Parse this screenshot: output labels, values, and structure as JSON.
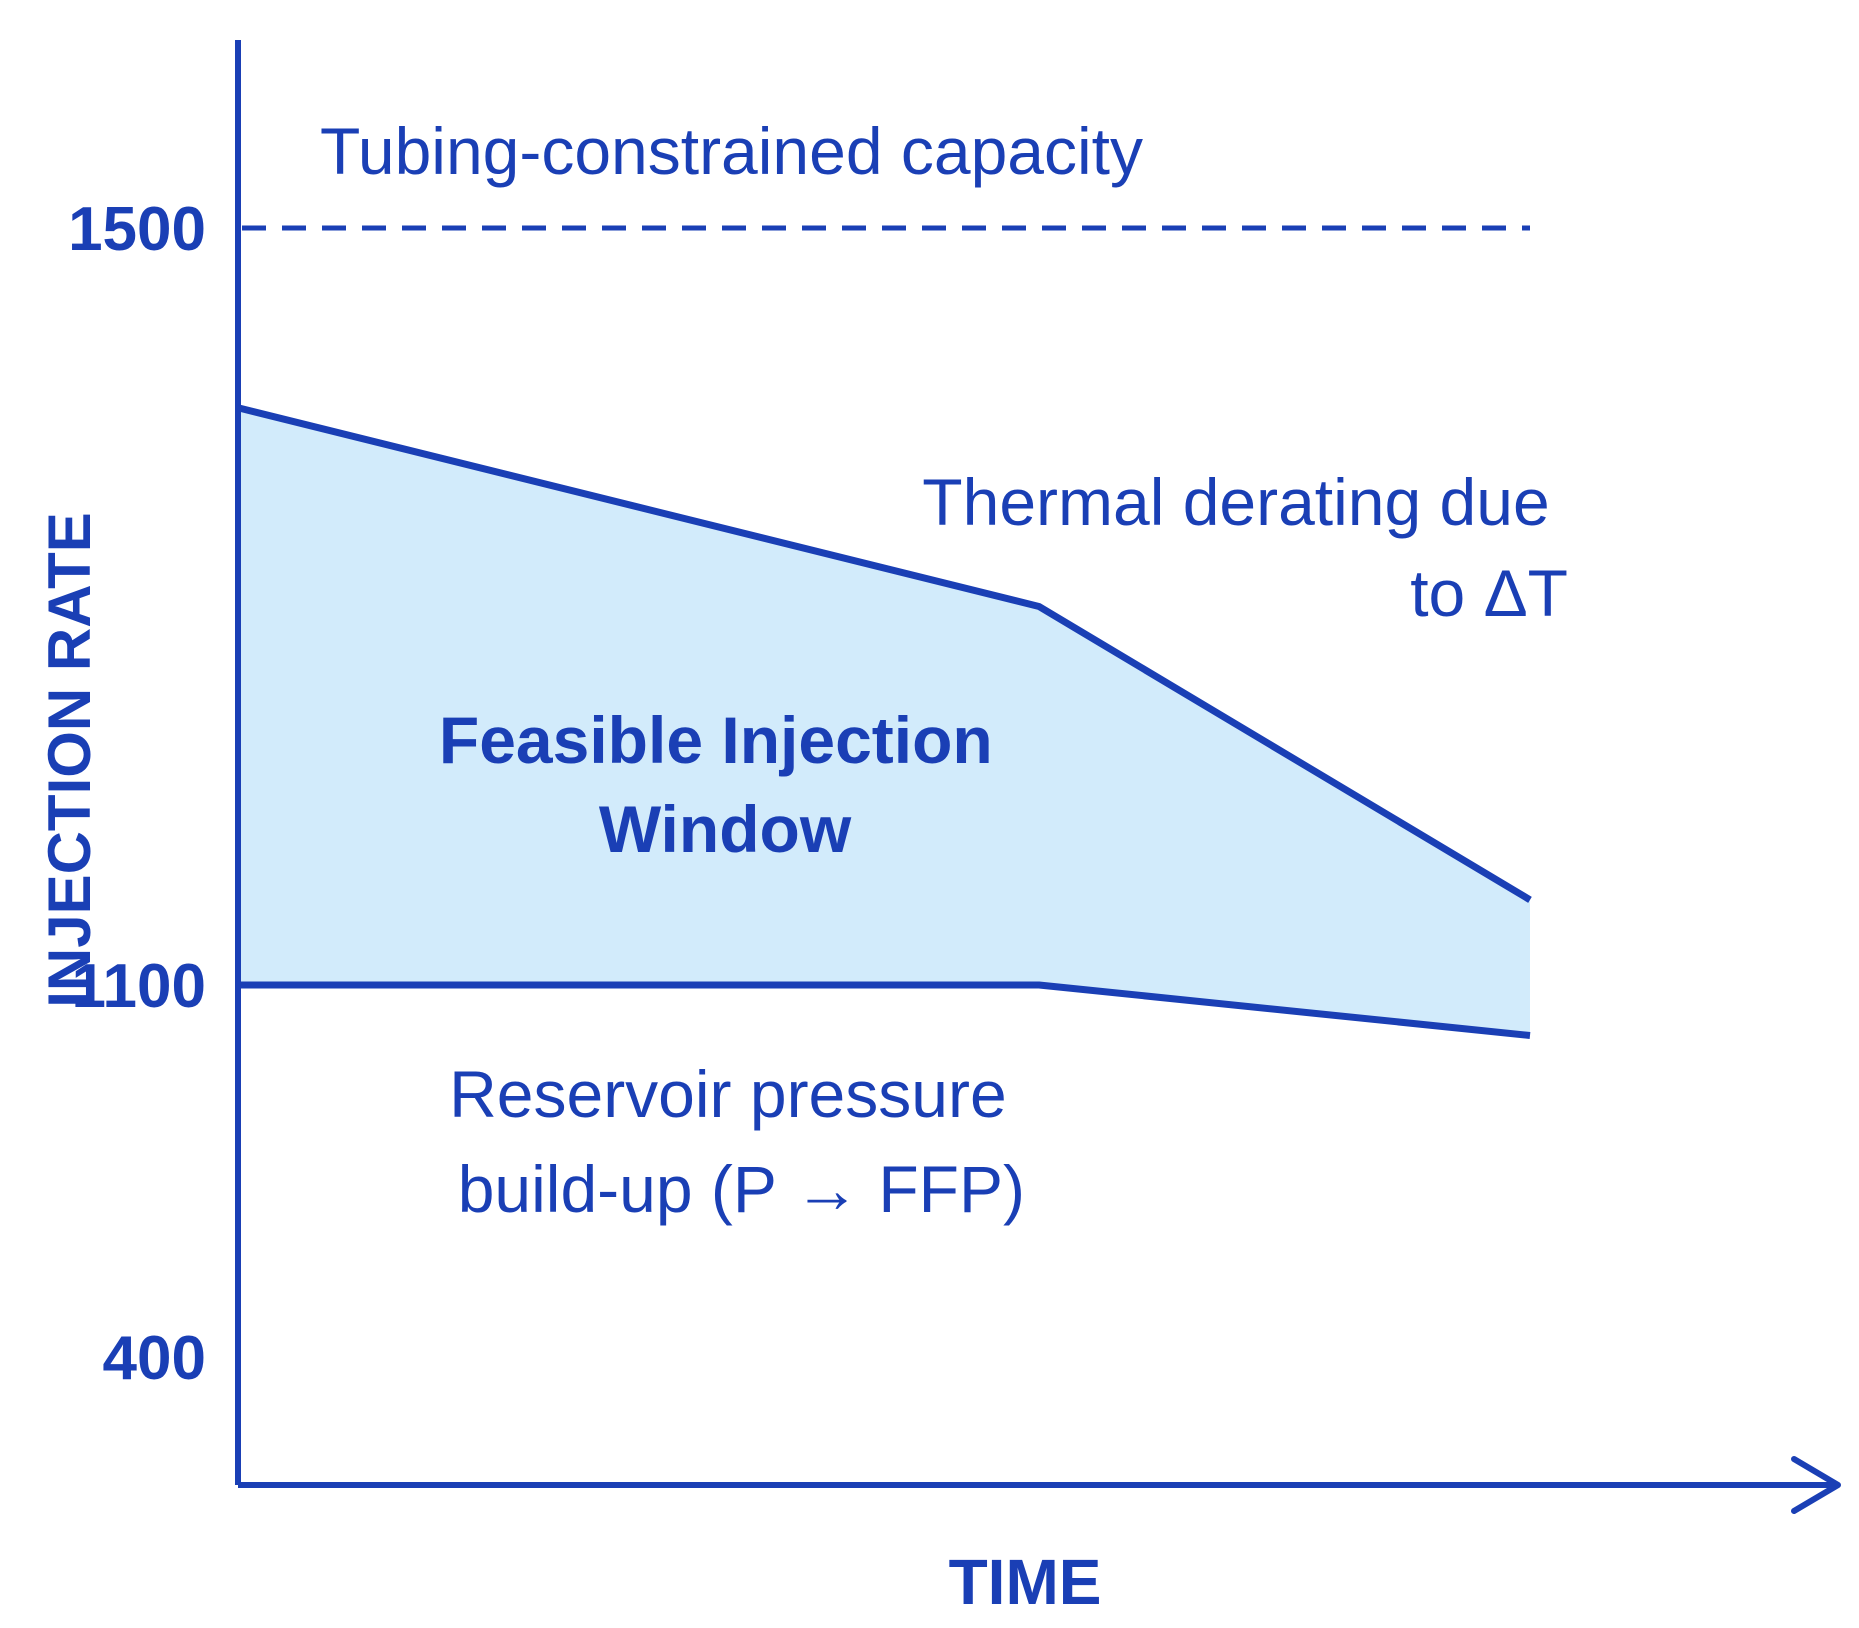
{
  "chart_data": {
    "type": "area",
    "title": "",
    "xlabel": "TIME",
    "ylabel": "INJECTION RATE",
    "y_ticks": [
      {
        "value": 1500,
        "label": "1500"
      },
      {
        "value": 1100,
        "label": "1100"
      },
      {
        "value": 400,
        "label": "400"
      }
    ],
    "x_range": [
      0,
      1
    ],
    "x_arrow": true,
    "grid": false,
    "reference_lines": [
      {
        "label": "Tubing-constrained capacity",
        "y": 1500,
        "style": "dashed"
      }
    ],
    "upper_bound": {
      "label": "Thermal derating due to ΔT",
      "label_lines": [
        "Thermal derating due",
        "to ΔT"
      ],
      "points": [
        [
          0,
          1405
        ],
        [
          0.62,
          1300
        ],
        [
          1.0,
          1145
        ]
      ]
    },
    "lower_bound": {
      "label": "Reservoir pressure build-up (P → FFP)",
      "label_lines": [
        "Reservoir pressure",
        "build-up (P → FFP)"
      ],
      "points": [
        [
          0,
          1100
        ],
        [
          0.62,
          1100
        ],
        [
          1.0,
          1005
        ]
      ]
    },
    "region": {
      "label": "Feasible Injection Window",
      "label_lines": [
        "Feasible Injection",
        "Window"
      ]
    },
    "colors": {
      "line": "#1a3fb5",
      "fill": "#d2ebfb",
      "text": "#1a3fb5"
    }
  }
}
